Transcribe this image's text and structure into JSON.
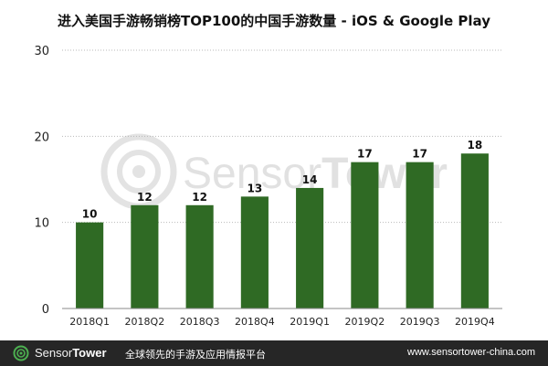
{
  "chart_data": {
    "type": "bar",
    "title": "进入美国手游畅销榜TOP100的中国手游数量 - iOS & Google Play",
    "categories": [
      "2018Q1",
      "2018Q2",
      "2018Q3",
      "2018Q4",
      "2019Q1",
      "2019Q2",
      "2019Q3",
      "2019Q4"
    ],
    "values": [
      10,
      12,
      12,
      13,
      14,
      17,
      17,
      18
    ],
    "ylim": [
      0,
      30
    ],
    "yticks": [
      0,
      10,
      20,
      30
    ],
    "grid": "horizontal dotted",
    "bar_color": "#2f6a24",
    "xlabel": "",
    "ylabel": ""
  },
  "watermark": {
    "text_light": "Sensor",
    "text_bold": "Tower"
  },
  "footer": {
    "brand_light": "Sensor",
    "brand_bold": "Tower",
    "tagline": "全球领先的手游及应用情报平台",
    "url": "www.sensortower-china.com",
    "logo_icon": "sensortower-logo-icon",
    "background": "#262626",
    "accent": "#4caf50"
  }
}
